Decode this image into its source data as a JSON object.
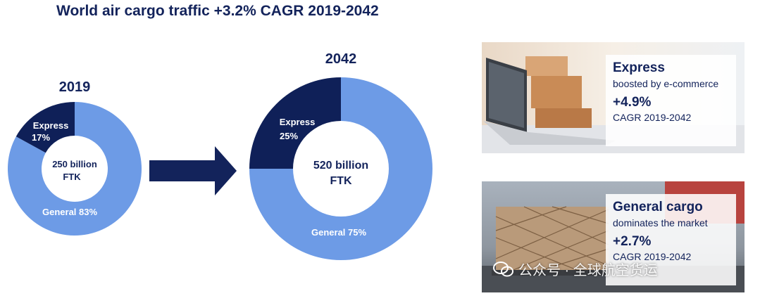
{
  "title": "World air cargo traffic +3.2% CAGR 2019-2042",
  "colors": {
    "express": "#0f2058",
    "general": "#6d9be6",
    "arrow": "#13235b",
    "text": "#13235b"
  },
  "chart_data": [
    {
      "type": "pie",
      "year_label": "2019",
      "center_label": [
        "250 billion",
        "FTK"
      ],
      "slices": [
        {
          "label": "Express",
          "value_text": "17%",
          "value": 17
        },
        {
          "label": "General",
          "value_text": "83%",
          "value": 83
        }
      ]
    },
    {
      "type": "pie",
      "year_label": "2042",
      "center_label": [
        "520 billion",
        "FTK"
      ],
      "slices": [
        {
          "label": "Express",
          "value_text": "25%",
          "value": 25
        },
        {
          "label": "General",
          "value_text": "75%",
          "value": 75
        }
      ]
    }
  ],
  "cards": [
    {
      "heading": "Express",
      "subtitle": "boosted by e-commerce",
      "rate": "+4.9%",
      "cagr": "CAGR 2019-2042",
      "image": "laptop-with-parcels"
    },
    {
      "heading": "General cargo",
      "subtitle": "dominates the market",
      "rate": "+2.7%",
      "cagr": "CAGR 2019-2042",
      "image": "netted-cargo-pallet"
    }
  ],
  "watermark": "公众号 · 全球航空货运"
}
